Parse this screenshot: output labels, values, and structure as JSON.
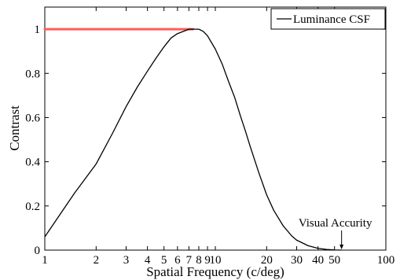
{
  "chart_data": {
    "type": "line",
    "title": "",
    "xlabel": "Spatial Frequency (c/deg)",
    "ylabel": "Contrast",
    "xscale": "log",
    "xlim": [
      1,
      100
    ],
    "ylim": [
      0,
      1.1
    ],
    "grid": false,
    "legend_position": "top-right",
    "x_ticks": [
      1,
      2,
      3,
      4,
      5,
      6,
      7,
      8,
      9,
      10,
      20,
      30,
      40,
      50,
      100
    ],
    "x_tick_labels": [
      "1",
      "2",
      "3",
      "4",
      "5",
      "6",
      "7",
      "8",
      "9",
      "10",
      "20",
      "30",
      "40",
      "50",
      "100"
    ],
    "y_ticks": [
      0,
      0.2,
      0.4,
      0.6,
      0.8,
      1
    ],
    "y_tick_labels": [
      "0",
      "0.2",
      "0.4",
      "0.6",
      "0.8",
      "1"
    ],
    "series": [
      {
        "name": "Luminance CSF",
        "color": "#000000",
        "x": [
          1,
          1.5,
          2,
          2.5,
          3,
          3.5,
          4,
          4.5,
          5,
          5.5,
          6,
          6.5,
          7,
          7.5,
          8,
          8.5,
          9,
          10,
          11,
          12,
          13,
          14,
          15,
          16,
          18,
          20,
          22,
          25,
          28,
          30,
          35,
          40,
          45,
          50,
          55
        ],
        "y": [
          0.06,
          0.26,
          0.39,
          0.53,
          0.65,
          0.74,
          0.81,
          0.87,
          0.92,
          0.96,
          0.98,
          0.99,
          1.0,
          1.0,
          1.0,
          0.99,
          0.97,
          0.91,
          0.84,
          0.76,
          0.69,
          0.61,
          0.54,
          0.47,
          0.35,
          0.25,
          0.18,
          0.11,
          0.065,
          0.045,
          0.02,
          0.008,
          0.003,
          0.001,
          0.0
        ]
      }
    ],
    "highlight": {
      "color": "#ff5c5c",
      "x": [
        1,
        7.4
      ],
      "y": 1.0
    },
    "annotation": {
      "text": "Visual Accurity",
      "x": 55,
      "y": 0
    }
  }
}
